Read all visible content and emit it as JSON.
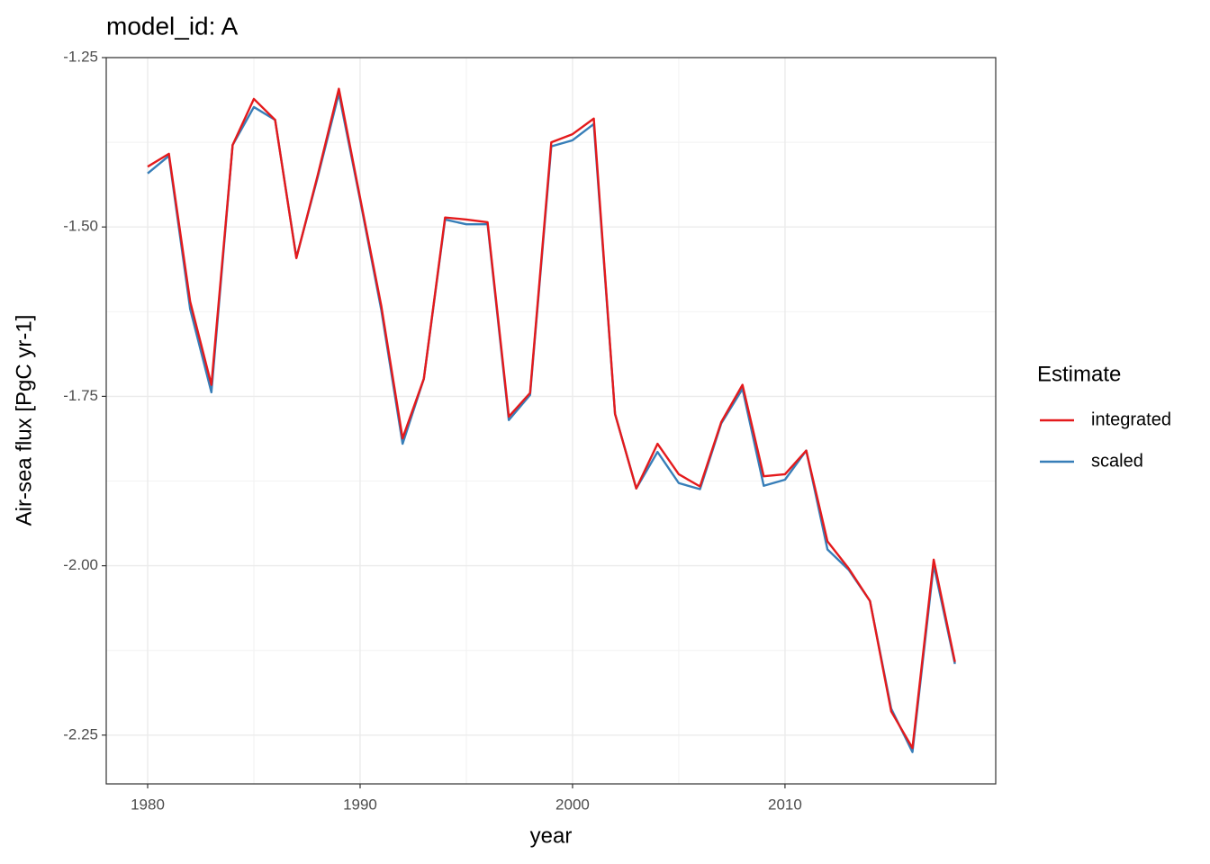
{
  "chart_data": {
    "type": "line",
    "title": "model_id: A",
    "x_label": "year",
    "y_label": "Air-sea flux [PgC yr-1]",
    "legend_title": "Estimate",
    "legend_position": "right",
    "grid": true,
    "minor_grid": true,
    "x": [
      1980,
      1981,
      1982,
      1983,
      1984,
      1985,
      1986,
      1987,
      1988,
      1989,
      1990,
      1991,
      1992,
      1993,
      1994,
      1995,
      1996,
      1997,
      1998,
      1999,
      2000,
      2001,
      2002,
      2003,
      2004,
      2005,
      2006,
      2007,
      2008,
      2009,
      2010,
      2011,
      2012,
      2013,
      2014,
      2015,
      2016,
      2017,
      2018
    ],
    "series": [
      {
        "name": "integrated",
        "color": "#e41a1c",
        "values": [
          -1.411,
          -1.392,
          -1.61,
          -1.733,
          -1.379,
          -1.311,
          -1.342,
          -1.546,
          -1.424,
          -1.296,
          -1.457,
          -1.617,
          -1.812,
          -1.724,
          -1.486,
          -1.489,
          -1.493,
          -1.78,
          -1.745,
          -1.375,
          -1.363,
          -1.34,
          -1.776,
          -1.886,
          -1.82,
          -1.865,
          -1.883,
          -1.788,
          -1.733,
          -1.868,
          -1.865,
          -1.83,
          -1.964,
          -2.004,
          -2.052,
          -2.215,
          -2.269,
          -1.991,
          -2.142
        ]
      },
      {
        "name": "scaled",
        "color": "#377eb8",
        "values": [
          -1.421,
          -1.395,
          -1.621,
          -1.744,
          -1.379,
          -1.323,
          -1.342,
          -1.545,
          -1.427,
          -1.303,
          -1.46,
          -1.623,
          -1.82,
          -1.724,
          -1.489,
          -1.496,
          -1.496,
          -1.785,
          -1.748,
          -1.381,
          -1.372,
          -1.348,
          -1.776,
          -1.886,
          -1.832,
          -1.878,
          -1.887,
          -1.79,
          -1.739,
          -1.882,
          -1.873,
          -1.83,
          -1.976,
          -2.006,
          -2.052,
          -2.211,
          -2.275,
          -1.999,
          -2.145
        ]
      }
    ],
    "xlim": [
      1978.05,
      2019.92
    ],
    "xticks": [
      1980,
      1990,
      2000,
      2010
    ],
    "ylim": [
      -2.322,
      -1.25
    ],
    "yticks": [
      -1.25,
      {
        "value": -1.5,
        "label": "-1.50"
      },
      -1.75,
      {
        "value": -2,
        "label": "-2.00"
      },
      -2.25
    ]
  }
}
